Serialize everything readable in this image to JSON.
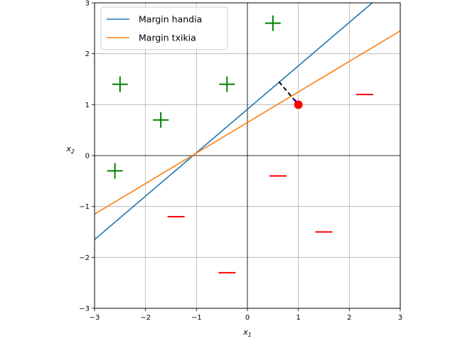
{
  "chart_data": {
    "type": "scatter",
    "title": "",
    "xlabel": "x",
    "xlabel_sub": "1",
    "ylabel": "x",
    "ylabel_sub": "2",
    "xlim": [
      -3,
      3
    ],
    "ylim": [
      -3,
      3
    ],
    "xticks": [
      -3,
      -2,
      -1,
      0,
      1,
      2,
      3
    ],
    "yticks": [
      -3,
      -2,
      -1,
      0,
      1,
      2,
      3
    ],
    "xtick_labels": [
      "−3",
      "−2",
      "−1",
      "0",
      "1",
      "2",
      "3"
    ],
    "ytick_labels": [
      "−3",
      "−2",
      "−1",
      "0",
      "1",
      "2",
      "3"
    ],
    "grid": true,
    "zero_axes": true,
    "legend_position": "top-left",
    "series": [
      {
        "name": "Margin handia",
        "kind": "line",
        "color": "#1f77b4",
        "x": [
          -3,
          2.45
        ],
        "y": [
          -1.65,
          3.0
        ]
      },
      {
        "name": "Margin txikia",
        "kind": "line",
        "color": "#ff7f0e",
        "x": [
          -3,
          3
        ],
        "y": [
          -1.15,
          2.45
        ]
      }
    ],
    "positive_points": {
      "marker": "plus",
      "color": "#008000",
      "x": [
        0.5,
        -2.5,
        -0.4,
        -1.7,
        -2.6
      ],
      "y": [
        2.6,
        1.4,
        1.4,
        0.7,
        -0.3
      ]
    },
    "negative_points": {
      "marker": "minus",
      "color": "#ff0000",
      "x": [
        2.3,
        0.6,
        -1.4,
        1.5,
        -0.4
      ],
      "y": [
        1.2,
        -0.4,
        -1.2,
        -1.5,
        -2.3
      ]
    },
    "highlight_point": {
      "color": "#ff0000",
      "x": 1.0,
      "y": 1.0
    },
    "distance_segment": {
      "color": "#000000",
      "x": [
        0.62,
        1.0
      ],
      "y": [
        1.45,
        1.0
      ]
    },
    "arrow_tip": {
      "color": "#0000ff",
      "x": [
        0.92,
        1.0
      ],
      "y": [
        1.1,
        1.0
      ]
    }
  }
}
